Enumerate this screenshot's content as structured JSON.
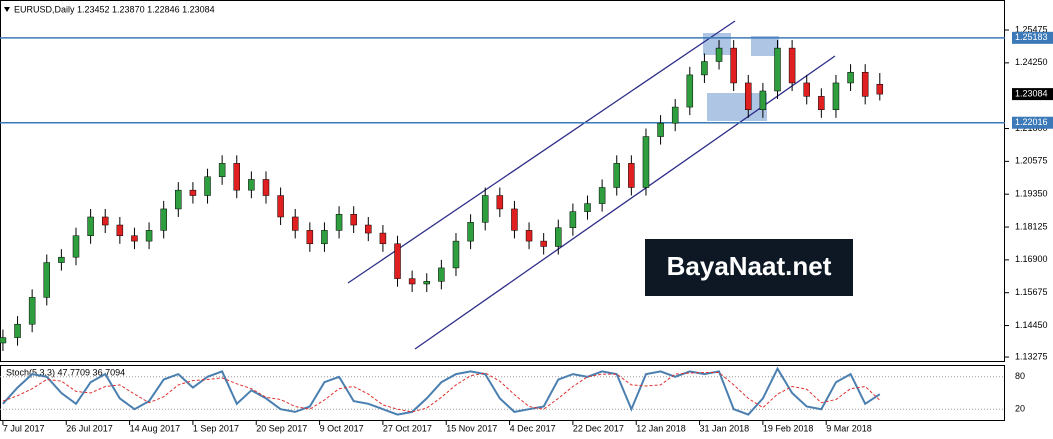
{
  "chart_data": [
    {
      "type": "candlestick",
      "title": "EURUSD,Daily  1.23452 1.23870 1.22846 1.23084",
      "x": [
        0,
        3,
        6,
        9,
        12,
        15,
        18,
        21,
        24,
        27,
        30,
        33,
        36,
        39,
        42,
        45,
        48,
        51,
        54,
        57,
        60,
        63,
        66,
        69,
        72,
        75,
        78,
        81,
        84,
        87,
        90,
        93,
        96,
        99,
        102,
        105,
        108,
        111,
        114,
        117,
        120,
        123,
        126,
        129,
        132,
        135,
        138,
        141,
        144,
        147,
        150,
        153,
        156,
        159,
        162,
        165,
        168,
        171,
        174,
        177,
        180
      ],
      "open": [
        1.138,
        1.14,
        1.145,
        1.155,
        1.168,
        1.17,
        1.178,
        1.185,
        1.182,
        1.178,
        1.176,
        1.18,
        1.188,
        1.195,
        1.193,
        1.2,
        1.205,
        1.195,
        1.199,
        1.193,
        1.185,
        1.18,
        1.175,
        1.18,
        1.186,
        1.182,
        1.179,
        1.175,
        1.162,
        1.16,
        1.161,
        1.166,
        1.176,
        1.183,
        1.193,
        1.188,
        1.18,
        1.176,
        1.174,
        1.181,
        1.187,
        1.19,
        1.196,
        1.205,
        1.196,
        1.215,
        1.22,
        1.226,
        1.238,
        1.243,
        1.248,
        1.235,
        1.225,
        1.232,
        1.248,
        1.235,
        1.23,
        1.225,
        1.235,
        1.239,
        1.23452
      ],
      "high": [
        1.143,
        1.148,
        1.158,
        1.171,
        1.173,
        1.181,
        1.188,
        1.188,
        1.185,
        1.181,
        1.183,
        1.191,
        1.198,
        1.198,
        1.203,
        1.208,
        1.208,
        1.202,
        1.202,
        1.196,
        1.188,
        1.183,
        1.183,
        1.189,
        1.189,
        1.185,
        1.182,
        1.178,
        1.165,
        1.164,
        1.169,
        1.179,
        1.186,
        1.196,
        1.196,
        1.191,
        1.183,
        1.179,
        1.184,
        1.19,
        1.193,
        1.199,
        1.208,
        1.208,
        1.218,
        1.223,
        1.229,
        1.241,
        1.246,
        1.251,
        1.251,
        1.238,
        1.235,
        1.251,
        1.251,
        1.238,
        1.233,
        1.238,
        1.242,
        1.242,
        1.2387
      ],
      "low": [
        1.135,
        1.137,
        1.142,
        1.152,
        1.165,
        1.167,
        1.175,
        1.179,
        1.175,
        1.173,
        1.173,
        1.177,
        1.185,
        1.19,
        1.19,
        1.197,
        1.192,
        1.192,
        1.19,
        1.182,
        1.177,
        1.172,
        1.172,
        1.177,
        1.179,
        1.176,
        1.172,
        1.159,
        1.157,
        1.157,
        1.158,
        1.163,
        1.173,
        1.18,
        1.185,
        1.177,
        1.173,
        1.171,
        1.171,
        1.178,
        1.184,
        1.187,
        1.193,
        1.193,
        1.193,
        1.212,
        1.217,
        1.223,
        1.235,
        1.24,
        1.232,
        1.222,
        1.222,
        1.229,
        1.232,
        1.227,
        1.222,
        1.222,
        1.232,
        1.227,
        1.22846
      ],
      "close": [
        1.14,
        1.145,
        1.155,
        1.168,
        1.17,
        1.178,
        1.185,
        1.182,
        1.178,
        1.176,
        1.18,
        1.188,
        1.195,
        1.193,
        1.2,
        1.205,
        1.195,
        1.199,
        1.193,
        1.185,
        1.18,
        1.175,
        1.18,
        1.186,
        1.182,
        1.179,
        1.175,
        1.162,
        1.16,
        1.161,
        1.166,
        1.176,
        1.183,
        1.193,
        1.188,
        1.18,
        1.176,
        1.174,
        1.181,
        1.187,
        1.19,
        1.196,
        1.205,
        1.196,
        1.215,
        1.22,
        1.226,
        1.238,
        1.243,
        1.248,
        1.235,
        1.225,
        1.232,
        1.248,
        1.235,
        1.23,
        1.225,
        1.235,
        1.239,
        1.23,
        1.23084
      ],
      "up_color": "#2e9e3e",
      "down_color": "#e02020",
      "xlim": [
        -0.6,
        205.7
      ],
      "ylim": [
        1.1309,
        1.2652
      ],
      "yticks": [
        1.25475,
        {
          "value": 1.2425,
          "label": "1.24250"
        },
        {
          "value": 1.218,
          "label": "1.21800"
        },
        1.20575,
        {
          "value": 1.1935,
          "label": "1.19350"
        },
        1.18125,
        {
          "value": 1.169,
          "label": "1.16900"
        },
        1.15675,
        {
          "value": 1.1445,
          "label": "1.14450"
        },
        1.13275
      ],
      "levels": [
        1.25183,
        1.22016
      ],
      "level_color": "#3b79b8",
      "current_price": 1.23084,
      "watermark": "BayaNaat.net"
    },
    {
      "type": "line",
      "title": "Stoch(5,3,3) 47.7709 36.7094",
      "series": [
        {
          "color": "#4a7fb0",
          "values": [
            30,
            60,
            85,
            80,
            50,
            30,
            70,
            85,
            40,
            20,
            35,
            75,
            85,
            60,
            80,
            90,
            30,
            55,
            40,
            20,
            15,
            25,
            70,
            80,
            35,
            30,
            20,
            10,
            15,
            40,
            70,
            85,
            90,
            85,
            40,
            15,
            20,
            25,
            75,
            85,
            80,
            90,
            85,
            20,
            85,
            90,
            80,
            90,
            85,
            90,
            20,
            10,
            40,
            95,
            50,
            25,
            20,
            70,
            85,
            30,
            47.7709
          ]
        },
        {
          "color": "#e03030",
          "values": [
            35,
            45,
            58,
            75,
            72,
            53,
            50,
            62,
            65,
            48,
            32,
            43,
            65,
            73,
            75,
            78,
            67,
            58,
            42,
            38,
            25,
            20,
            37,
            58,
            62,
            48,
            28,
            20,
            15,
            22,
            42,
            65,
            82,
            87,
            72,
            47,
            25,
            20,
            40,
            62,
            80,
            85,
            85,
            65,
            63,
            65,
            85,
            87,
            88,
            88,
            65,
            40,
            23,
            48,
            62,
            57,
            32,
            38,
            58,
            62,
            36.7094
          ]
        }
      ],
      "ylim": [
        0,
        100
      ],
      "yticks": [
        80,
        20
      ],
      "xticks": [
        {
          "value": 0,
          "label": "7 Jul 2017"
        },
        {
          "value": 13,
          "label": "26 Jul 2017"
        },
        {
          "value": 26,
          "label": "14 Aug 2017"
        },
        {
          "value": 39,
          "label": "1 Sep 2017"
        },
        {
          "value": 52,
          "label": "20 Sep 2017"
        },
        {
          "value": 65,
          "label": "9 Oct 2017"
        },
        {
          "value": 78,
          "label": "27 Oct 2017"
        },
        {
          "value": 91,
          "label": "15 Nov 2017"
        },
        {
          "value": 104,
          "label": "4 Dec 2017"
        },
        {
          "value": 117,
          "label": "22 Dec 2017"
        },
        {
          "value": 130,
          "label": "12 Jan 2018"
        },
        {
          "value": 143,
          "label": "31 Jan 2018"
        },
        {
          "value": 156,
          "label": "19 Feb 2018"
        },
        {
          "value": 169,
          "label": "9 Mar 2018"
        }
      ]
    }
  ]
}
